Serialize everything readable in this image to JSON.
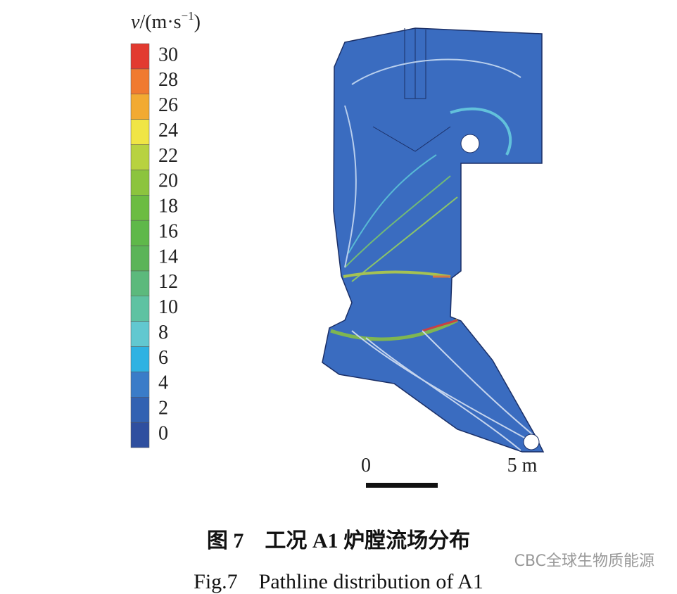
{
  "colorbar": {
    "title": [
      "v",
      "/(m·s",
      "−1",
      ")"
    ],
    "ticks": [
      0,
      2,
      4,
      6,
      8,
      10,
      12,
      14,
      16,
      18,
      20,
      22,
      24,
      26,
      28,
      30
    ],
    "colors": [
      "#2f4f9f",
      "#3262b2",
      "#3a7cc8",
      "#2fb2e2",
      "#62c8d0",
      "#5ec2a2",
      "#5cb97c",
      "#5bb458",
      "#5fb84a",
      "#6cbc42",
      "#8cc43e",
      "#b8d240",
      "#f0e545",
      "#f2aa32",
      "#f07a30",
      "#e23a30"
    ]
  },
  "scale_bar": {
    "start": "0",
    "end": "5 m"
  },
  "caption": {
    "chinese": "图 7　工况 A1 炉膛流场分布",
    "english": "Fig.7　Pathline distribution of A1"
  },
  "watermark": "CBC全球生物质能源"
}
